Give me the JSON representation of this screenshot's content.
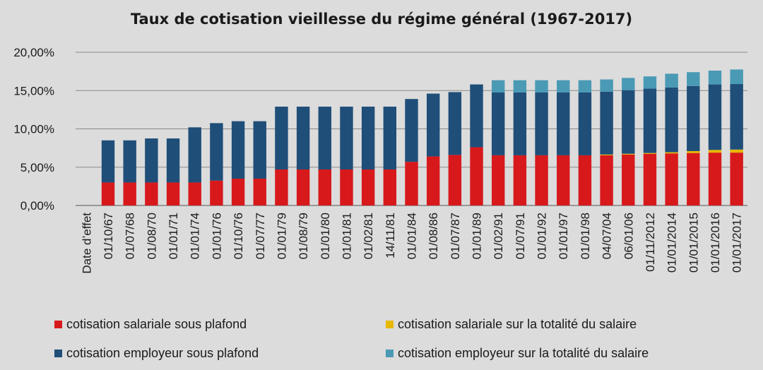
{
  "chart_data": {
    "type": "bar",
    "stacked": true,
    "title": "Taux de cotisation vieillesse du régime général (1967-2017)",
    "xlabel": "Date d’effet",
    "ylabel": "",
    "ylim": [
      0,
      20
    ],
    "yticks": [
      "0,00%",
      "5,00%",
      "10,00%",
      "15,00%",
      "20,00%"
    ],
    "grid": true,
    "legend_position": "bottom",
    "categories": [
      "01/10/67",
      "01/07/68",
      "01/08/70",
      "01/01/71",
      "01/01/74",
      "01/01/76",
      "01/10/76",
      "01/07/77",
      "01/01/79",
      "01/08/79",
      "01/01/80",
      "01/01/81",
      "01/02/81",
      "14/11/81",
      "01/01/84",
      "01/08/86",
      "01/07/87",
      "01/01/89",
      "01/02/91",
      "01/07/91",
      "01/01/92",
      "01/01/97",
      "01/01/98",
      "04/07/04",
      "06/01/06",
      "01/11/2012",
      "01/01/2014",
      "01/01/2015",
      "01/01/2016",
      "01/01/2017"
    ],
    "series": [
      {
        "name": "cotisation salariale sous plafond",
        "color": "#d7191c",
        "values": [
          3.0,
          3.0,
          3.0,
          3.0,
          3.0,
          3.25,
          3.5,
          3.5,
          4.7,
          4.7,
          4.7,
          4.7,
          4.7,
          4.7,
          5.7,
          6.4,
          6.6,
          7.6,
          6.55,
          6.55,
          6.55,
          6.55,
          6.55,
          6.55,
          6.65,
          6.75,
          6.8,
          6.85,
          6.9,
          6.9
        ]
      },
      {
        "name": "cotisation salariale sur la totalité du salaire",
        "color": "#e6b800",
        "values": [
          0,
          0,
          0,
          0,
          0,
          0,
          0,
          0,
          0,
          0,
          0,
          0,
          0,
          0,
          0,
          0,
          0,
          0,
          0,
          0,
          0,
          0,
          0,
          0.1,
          0.1,
          0.1,
          0.15,
          0.25,
          0.35,
          0.4
        ]
      },
      {
        "name": "cotisation employeur sous plafond",
        "color": "#1f4e79",
        "values": [
          5.5,
          5.5,
          5.75,
          5.75,
          7.2,
          7.5,
          7.5,
          7.5,
          8.2,
          8.2,
          8.2,
          8.2,
          8.2,
          8.2,
          8.2,
          8.2,
          8.2,
          8.2,
          8.2,
          8.2,
          8.2,
          8.2,
          8.2,
          8.2,
          8.3,
          8.4,
          8.45,
          8.5,
          8.55,
          8.55
        ]
      },
      {
        "name": "cotisation employeur sur la totalité du salaire",
        "color": "#4a9ab5",
        "values": [
          0,
          0,
          0,
          0,
          0,
          0,
          0,
          0,
          0,
          0,
          0,
          0,
          0,
          0,
          0,
          0,
          0,
          0,
          1.6,
          1.6,
          1.6,
          1.6,
          1.6,
          1.6,
          1.6,
          1.6,
          1.8,
          1.8,
          1.8,
          1.9
        ]
      }
    ]
  }
}
